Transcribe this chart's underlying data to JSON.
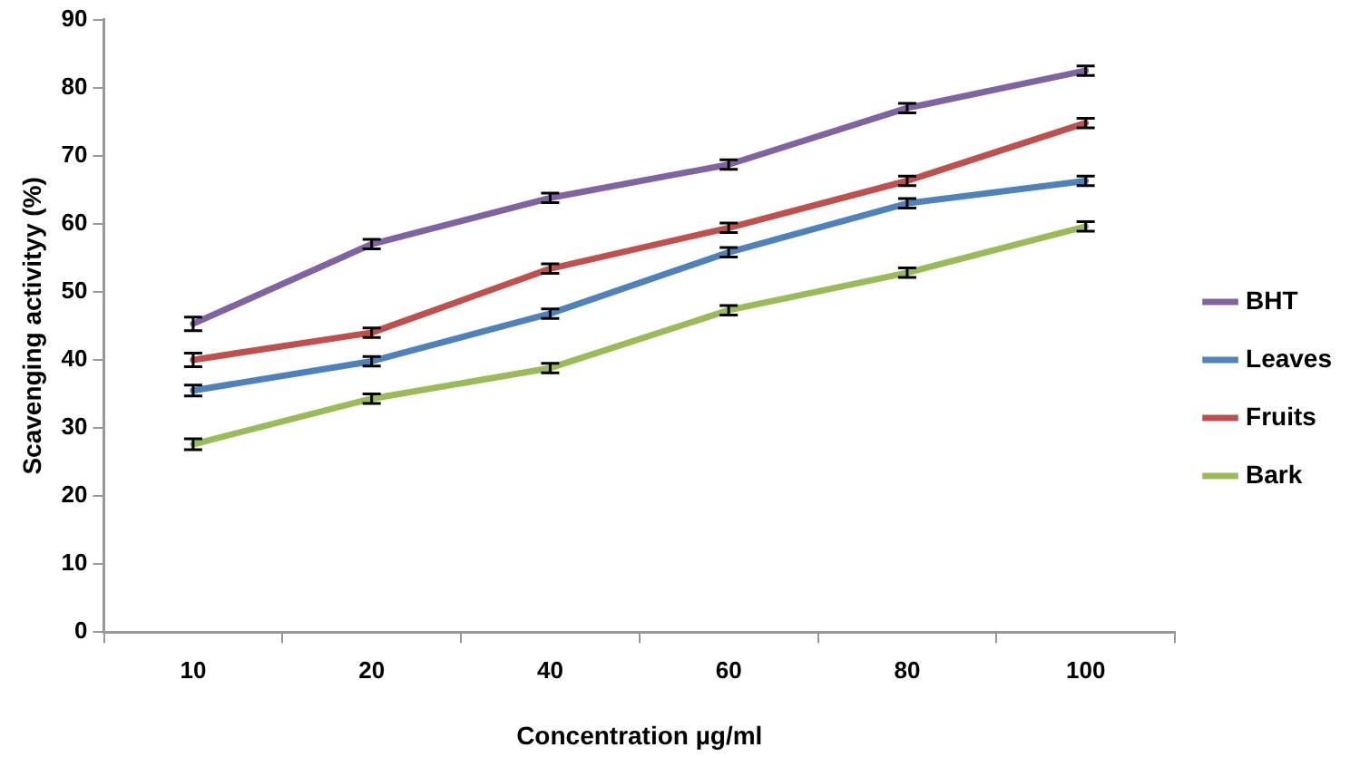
{
  "chart_data": {
    "type": "line",
    "xlabel": "Concentration µg/ml",
    "ylabel": "Scavenging activityy (%)",
    "categories": [
      "10",
      "20",
      "40",
      "60",
      "80",
      "100"
    ],
    "ylim": [
      0,
      90
    ],
    "yticks": [
      0,
      10,
      20,
      30,
      40,
      50,
      60,
      70,
      80,
      90
    ],
    "grid": false,
    "legend": "right",
    "marker": "none",
    "line_style": "solid",
    "series": [
      {
        "name": "BHT",
        "color": "#8064a2",
        "values": [
          45.3,
          57,
          63.8,
          68.7,
          77,
          82.5
        ],
        "errors": [
          1,
          0.7,
          0.7,
          0.7,
          0.7,
          0.7
        ]
      },
      {
        "name": "Leaves",
        "color": "#4f81bd",
        "values": [
          35.5,
          39.8,
          46.8,
          55.8,
          63,
          66.3
        ],
        "errors": [
          0.8,
          0.7,
          0.7,
          0.7,
          0.7,
          0.7
        ]
      },
      {
        "name": "Fruits",
        "color": "#c0504d",
        "values": [
          40,
          44,
          53.4,
          59.4,
          66.3,
          74.8
        ],
        "errors": [
          1,
          0.7,
          0.7,
          0.7,
          0.7,
          0.7
        ]
      },
      {
        "name": "Bark",
        "color": "#9bbb59",
        "values": [
          27.6,
          34.3,
          38.8,
          47.3,
          52.8,
          59.6
        ],
        "errors": [
          0.8,
          0.7,
          0.7,
          0.7,
          0.7,
          0.7
        ]
      }
    ]
  }
}
